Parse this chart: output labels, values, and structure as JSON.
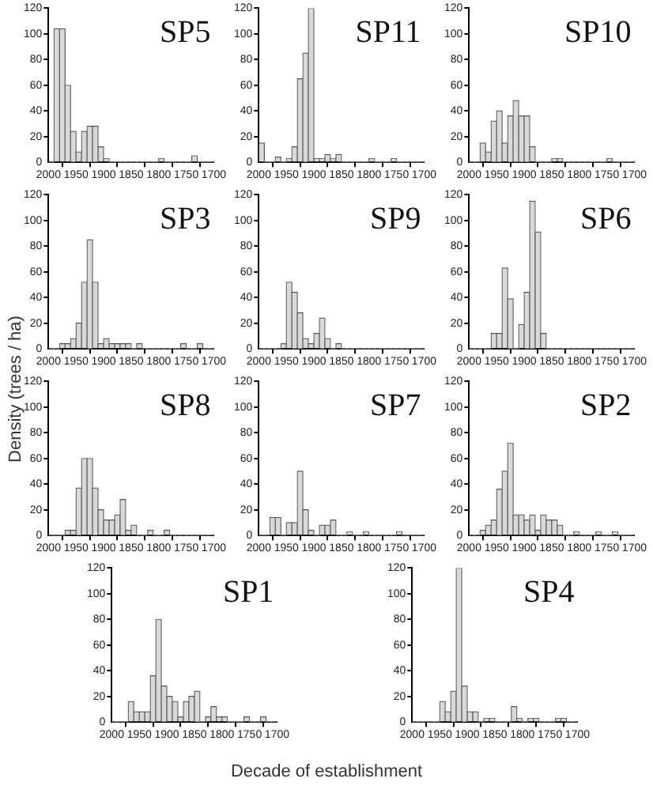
{
  "chart_data": [
    {
      "type": "histogram",
      "title": "SP5",
      "bins": [
        2000,
        1990,
        1980,
        1970,
        1960,
        1950,
        1940,
        1930,
        1920,
        1910,
        1900,
        1890,
        1880,
        1870,
        1860,
        1850,
        1840,
        1830,
        1820,
        1810,
        1800,
        1790,
        1780,
        1770,
        1760,
        1750,
        1740,
        1730,
        1720,
        1710,
        1700
      ],
      "values": [
        0,
        104,
        104,
        60,
        24,
        8,
        24,
        28,
        28,
        12,
        3,
        0,
        0,
        0,
        0,
        0,
        0,
        0,
        0,
        0,
        3,
        0,
        0,
        0,
        0,
        0,
        5,
        0,
        0,
        0
      ],
      "color": "#d9d9d9",
      "xlim": [
        2000,
        1700
      ],
      "ylim": [
        0,
        120
      ],
      "xticks": [
        2000,
        1950,
        1900,
        1850,
        1800,
        1750,
        1700
      ],
      "yticks": [
        0,
        20,
        40,
        60,
        80,
        100,
        120
      ]
    },
    {
      "type": "histogram",
      "title": "SP11",
      "bins": [
        2000,
        1990,
        1980,
        1970,
        1960,
        1950,
        1940,
        1930,
        1920,
        1910,
        1900,
        1890,
        1880,
        1870,
        1860,
        1850,
        1840,
        1830,
        1820,
        1810,
        1800,
        1790,
        1780,
        1770,
        1760,
        1750,
        1740,
        1730,
        1720,
        1710,
        1700
      ],
      "values": [
        15,
        0,
        0,
        4,
        0,
        3,
        12,
        65,
        85,
        120,
        3,
        3,
        6,
        3,
        6,
        0,
        0,
        0,
        0,
        0,
        3,
        0,
        0,
        0,
        3,
        0,
        0,
        0,
        0,
        0
      ],
      "color": "#d9d9d9",
      "xlim": [
        2000,
        1700
      ],
      "ylim": [
        0,
        120
      ],
      "xticks": [
        2000,
        1950,
        1900,
        1850,
        1800,
        1750,
        1700
      ],
      "yticks": [
        0,
        20,
        40,
        60,
        80,
        100,
        120
      ]
    },
    {
      "type": "histogram",
      "title": "SP10",
      "bins": [
        2000,
        1990,
        1980,
        1970,
        1960,
        1950,
        1940,
        1930,
        1920,
        1910,
        1900,
        1890,
        1880,
        1870,
        1860,
        1850,
        1840,
        1830,
        1820,
        1810,
        1800,
        1790,
        1780,
        1770,
        1760,
        1750,
        1740,
        1730,
        1720,
        1710,
        1700
      ],
      "values": [
        0,
        0,
        15,
        8,
        32,
        40,
        15,
        36,
        48,
        36,
        36,
        12,
        0,
        0,
        0,
        3,
        3,
        0,
        0,
        0,
        0,
        0,
        0,
        0,
        0,
        3,
        0,
        0,
        0,
        0
      ],
      "color": "#d9d9d9",
      "xlim": [
        2000,
        1700
      ],
      "ylim": [
        0,
        120
      ],
      "xticks": [
        2000,
        1950,
        1900,
        1850,
        1800,
        1750,
        1700
      ],
      "yticks": [
        0,
        20,
        40,
        60,
        80,
        100,
        120
      ]
    },
    {
      "type": "histogram",
      "title": "SP3",
      "ylabel": "Density (trees / ha)",
      "bins": [
        2000,
        1990,
        1980,
        1970,
        1960,
        1950,
        1940,
        1930,
        1920,
        1910,
        1900,
        1890,
        1880,
        1870,
        1860,
        1850,
        1840,
        1830,
        1820,
        1810,
        1800,
        1790,
        1780,
        1770,
        1760,
        1750,
        1740,
        1730,
        1720,
        1710,
        1700
      ],
      "values": [
        0,
        0,
        4,
        4,
        8,
        20,
        52,
        85,
        52,
        4,
        8,
        4,
        4,
        4,
        4,
        0,
        4,
        0,
        0,
        0,
        0,
        0,
        0,
        0,
        4,
        0,
        0,
        4,
        0,
        0
      ],
      "color": "#d9d9d9",
      "xlim": [
        2000,
        1700
      ],
      "ylim": [
        0,
        120
      ],
      "xticks": [
        2000,
        1950,
        1900,
        1850,
        1800,
        1750,
        1700
      ],
      "yticks": [
        0,
        20,
        40,
        60,
        80,
        100,
        120
      ]
    },
    {
      "type": "histogram",
      "title": "SP9",
      "bins": [
        2000,
        1990,
        1980,
        1970,
        1960,
        1950,
        1940,
        1930,
        1920,
        1910,
        1900,
        1890,
        1880,
        1870,
        1860,
        1850,
        1840,
        1830,
        1820,
        1810,
        1800,
        1790,
        1780,
        1770,
        1760,
        1750,
        1740,
        1730,
        1720,
        1710,
        1700
      ],
      "values": [
        0,
        0,
        0,
        0,
        4,
        52,
        44,
        28,
        8,
        4,
        12,
        24,
        8,
        0,
        4,
        0,
        0,
        0,
        0,
        0,
        0,
        0,
        0,
        0,
        0,
        0,
        0,
        0,
        0,
        0
      ],
      "color": "#d9d9d9",
      "xlim": [
        2000,
        1700
      ],
      "ylim": [
        0,
        120
      ],
      "xticks": [
        2000,
        1950,
        1900,
        1850,
        1800,
        1750,
        1700
      ],
      "yticks": [
        0,
        20,
        40,
        60,
        80,
        100,
        120
      ]
    },
    {
      "type": "histogram",
      "title": "SP6",
      "bins": [
        2000,
        1990,
        1980,
        1970,
        1960,
        1950,
        1940,
        1930,
        1920,
        1910,
        1900,
        1890,
        1880,
        1870,
        1860,
        1850,
        1840,
        1830,
        1820,
        1810,
        1800,
        1790,
        1780,
        1770,
        1760,
        1750,
        1740,
        1730,
        1720,
        1710,
        1700
      ],
      "values": [
        0,
        0,
        0,
        0,
        12,
        12,
        63,
        39,
        0,
        19,
        44,
        115,
        91,
        12,
        0,
        0,
        0,
        0,
        0,
        0,
        0,
        0,
        0,
        0,
        0,
        0,
        0,
        0,
        0,
        0
      ],
      "color": "#d9d9d9",
      "xlim": [
        2000,
        1700
      ],
      "ylim": [
        0,
        120
      ],
      "xticks": [
        2000,
        1950,
        1900,
        1850,
        1800,
        1750,
        1700
      ],
      "yticks": [
        0,
        20,
        40,
        60,
        80,
        100,
        120
      ]
    },
    {
      "type": "histogram",
      "title": "SP8",
      "bins": [
        2000,
        1990,
        1980,
        1970,
        1960,
        1950,
        1940,
        1930,
        1920,
        1910,
        1900,
        1890,
        1880,
        1870,
        1860,
        1850,
        1840,
        1830,
        1820,
        1810,
        1800,
        1790,
        1780,
        1770,
        1760,
        1750,
        1740,
        1730,
        1720,
        1710,
        1700
      ],
      "values": [
        0,
        0,
        0,
        4,
        4,
        37,
        60,
        60,
        37,
        20,
        12,
        12,
        16,
        28,
        4,
        8,
        0,
        0,
        4,
        0,
        0,
        4,
        0,
        0,
        0,
        0,
        0,
        0,
        0,
        0
      ],
      "color": "#d9d9d9",
      "xlim": [
        2000,
        1700
      ],
      "ylim": [
        0,
        120
      ],
      "xticks": [
        2000,
        1950,
        1900,
        1850,
        1800,
        1750,
        1700
      ],
      "yticks": [
        0,
        20,
        40,
        60,
        80,
        100,
        120
      ]
    },
    {
      "type": "histogram",
      "title": "SP7",
      "bins": [
        2000,
        1990,
        1980,
        1970,
        1960,
        1950,
        1940,
        1930,
        1920,
        1910,
        1900,
        1890,
        1880,
        1870,
        1860,
        1850,
        1840,
        1830,
        1820,
        1810,
        1800,
        1790,
        1780,
        1770,
        1760,
        1750,
        1740,
        1730,
        1720,
        1710,
        1700
      ],
      "values": [
        0,
        0,
        14,
        14,
        0,
        10,
        10,
        50,
        20,
        4,
        0,
        8,
        8,
        12,
        0,
        0,
        3,
        0,
        0,
        3,
        0,
        0,
        0,
        0,
        0,
        3,
        0,
        0,
        0,
        0
      ],
      "color": "#d9d9d9",
      "xlim": [
        2000,
        1700
      ],
      "ylim": [
        0,
        120
      ],
      "xticks": [
        2000,
        1950,
        1900,
        1850,
        1800,
        1750,
        1700
      ],
      "yticks": [
        0,
        20,
        40,
        60,
        80,
        100,
        120
      ]
    },
    {
      "type": "histogram",
      "title": "SP2",
      "bins": [
        2000,
        1990,
        1980,
        1970,
        1960,
        1950,
        1940,
        1930,
        1920,
        1910,
        1900,
        1890,
        1880,
        1870,
        1860,
        1850,
        1840,
        1830,
        1820,
        1810,
        1800,
        1790,
        1780,
        1770,
        1760,
        1750,
        1740,
        1730,
        1720,
        1710,
        1700
      ],
      "values": [
        0,
        0,
        4,
        8,
        12,
        36,
        50,
        72,
        16,
        16,
        12,
        16,
        4,
        16,
        12,
        12,
        8,
        0,
        0,
        3,
        0,
        0,
        0,
        3,
        0,
        0,
        3,
        0,
        0,
        0
      ],
      "color": "#d9d9d9",
      "xlim": [
        2000,
        1700
      ],
      "ylim": [
        0,
        120
      ],
      "xticks": [
        2000,
        1950,
        1900,
        1850,
        1800,
        1750,
        1700
      ],
      "yticks": [
        0,
        20,
        40,
        60,
        80,
        100,
        120
      ]
    },
    {
      "type": "histogram",
      "title": "SP1",
      "xlabel": "Decade of establishment",
      "bins": [
        2000,
        1990,
        1980,
        1970,
        1960,
        1950,
        1940,
        1930,
        1920,
        1910,
        1900,
        1890,
        1880,
        1870,
        1860,
        1850,
        1840,
        1830,
        1820,
        1810,
        1800,
        1790,
        1780,
        1770,
        1760,
        1750,
        1740,
        1730,
        1720,
        1710,
        1700
      ],
      "values": [
        0,
        0,
        0,
        16,
        8,
        8,
        8,
        36,
        80,
        28,
        20,
        16,
        4,
        16,
        20,
        24,
        0,
        4,
        12,
        4,
        4,
        0,
        0,
        0,
        4,
        0,
        0,
        4,
        0,
        0
      ],
      "color": "#d9d9d9",
      "xlim": [
        2000,
        1700
      ],
      "ylim": [
        0,
        120
      ],
      "xticks": [
        2000,
        1950,
        1900,
        1850,
        1800,
        1750,
        1700
      ],
      "yticks": [
        0,
        20,
        40,
        60,
        80,
        100,
        120
      ]
    },
    {
      "type": "histogram",
      "title": "SP4",
      "bins": [
        2000,
        1990,
        1980,
        1970,
        1960,
        1950,
        1940,
        1930,
        1920,
        1910,
        1900,
        1890,
        1880,
        1870,
        1860,
        1850,
        1840,
        1830,
        1820,
        1810,
        1800,
        1790,
        1780,
        1770,
        1760,
        1750,
        1740,
        1730,
        1720,
        1710,
        1700
      ],
      "values": [
        0,
        0,
        0,
        0,
        0,
        16,
        8,
        24,
        120,
        28,
        8,
        8,
        0,
        3,
        3,
        0,
        0,
        0,
        12,
        3,
        0,
        3,
        3,
        0,
        0,
        0,
        3,
        3,
        0,
        0
      ],
      "color": "#d9d9d9",
      "xlim": [
        2000,
        1700
      ],
      "ylim": [
        0,
        120
      ],
      "xticks": [
        2000,
        1950,
        1900,
        1850,
        1800,
        1750,
        1700
      ],
      "yticks": [
        0,
        20,
        40,
        60,
        80,
        100,
        120
      ]
    }
  ]
}
